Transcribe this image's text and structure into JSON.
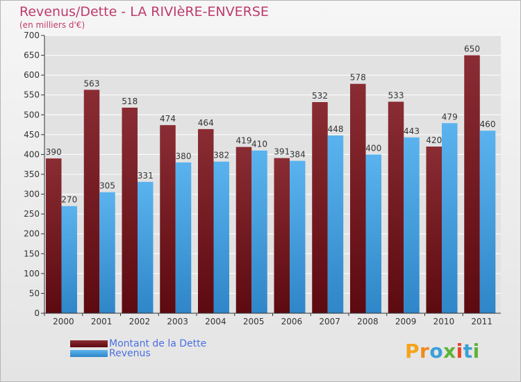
{
  "title": "Revenus/Dette - LA RIVIèRE-ENVERSE",
  "subtitle": "(en milliers d'€)",
  "logo_text": "Proxiti",
  "colors": {
    "debt": "#7a1c22",
    "revenue": "#4aa3e2",
    "grid": "#ffffff",
    "plot_bg": "#e2e2e2",
    "title": "#bf3a6c",
    "legend_text": "#4a6fe0"
  },
  "chart_data": {
    "type": "bar",
    "categories": [
      "2000",
      "2001",
      "2002",
      "2003",
      "2004",
      "2005",
      "2006",
      "2007",
      "2008",
      "2009",
      "2010",
      "2011"
    ],
    "series": [
      {
        "name": "Montant de la Dette",
        "values": [
          390,
          563,
          518,
          474,
          464,
          419,
          391,
          532,
          578,
          533,
          420,
          650
        ]
      },
      {
        "name": "Revenus",
        "values": [
          270,
          305,
          331,
          380,
          382,
          410,
          384,
          448,
          400,
          443,
          479,
          460
        ]
      }
    ],
    "ylim": [
      0,
      700
    ],
    "yticks": [
      0,
      50,
      100,
      150,
      200,
      250,
      300,
      350,
      400,
      450,
      500,
      550,
      600,
      650,
      700
    ],
    "grid": true,
    "legend_position": "bottom-left"
  }
}
